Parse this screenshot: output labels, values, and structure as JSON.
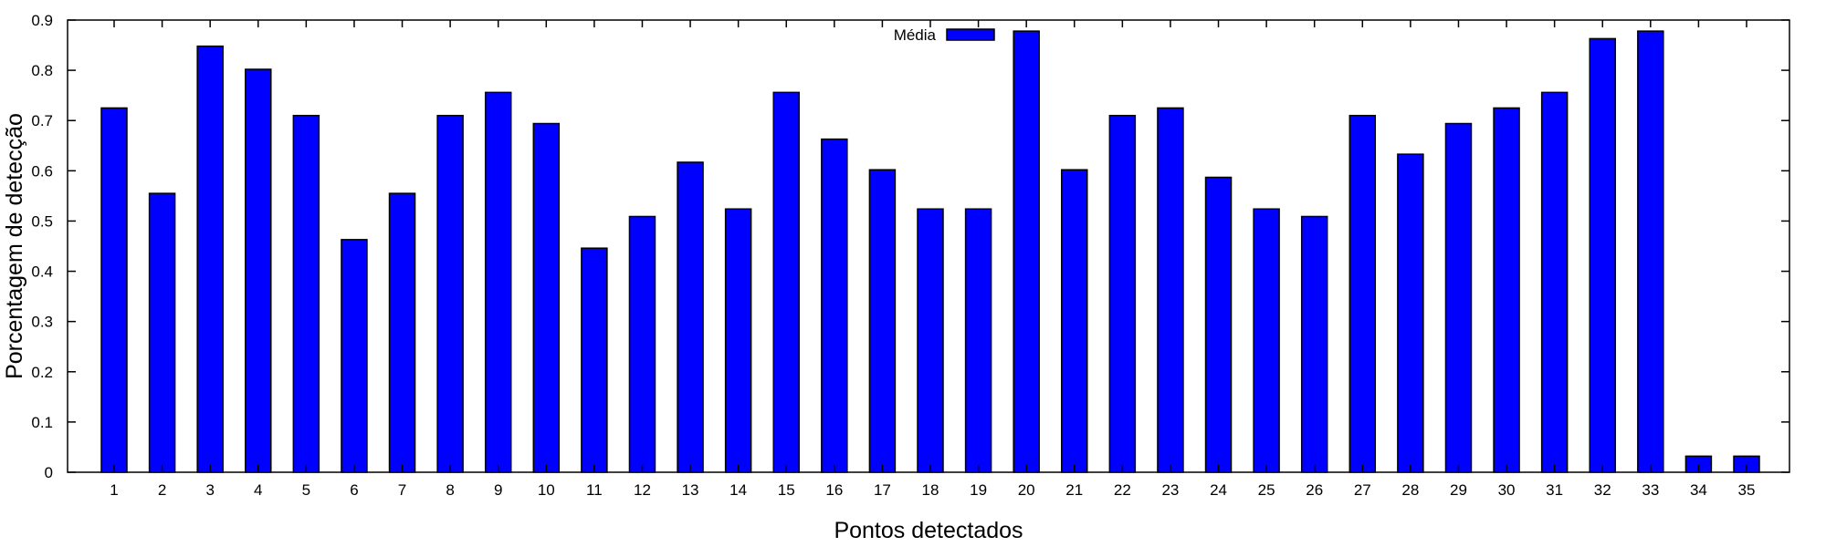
{
  "chart_data": {
    "type": "bar",
    "categories": [
      "1",
      "2",
      "3",
      "4",
      "5",
      "6",
      "7",
      "8",
      "9",
      "10",
      "11",
      "12",
      "13",
      "14",
      "15",
      "16",
      "17",
      "18",
      "19",
      "20",
      "21",
      "22",
      "23",
      "24",
      "25",
      "26",
      "27",
      "28",
      "29",
      "30",
      "31",
      "32",
      "33",
      "34",
      "35"
    ],
    "series": [
      {
        "name": "Média",
        "color": "#0000ff",
        "values": [
          0.725,
          0.555,
          0.848,
          0.802,
          0.71,
          0.463,
          0.555,
          0.71,
          0.756,
          0.694,
          0.446,
          0.509,
          0.617,
          0.524,
          0.756,
          0.663,
          0.602,
          0.524,
          0.524,
          0.878,
          0.602,
          0.71,
          0.725,
          0.587,
          0.524,
          0.509,
          0.71,
          0.633,
          0.694,
          0.725,
          0.756,
          0.863,
          0.878,
          0.032,
          0.032
        ]
      }
    ],
    "xlabel": "Pontos detectados",
    "ylabel": "Porcentagem de detecção",
    "ylim": [
      0,
      0.9
    ],
    "yticks": [
      "0",
      "0.1",
      "0.2",
      "0.3",
      "0.4",
      "0.5",
      "0.6",
      "0.7",
      "0.8",
      "0.9"
    ],
    "grid": false,
    "legend_position": "top-center"
  }
}
